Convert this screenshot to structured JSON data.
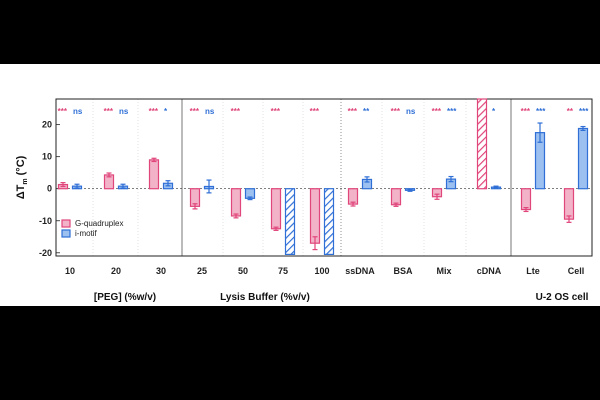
{
  "chart_data": {
    "type": "bar",
    "ylabel": "ΔT",
    "ylabel_sub": "m",
    "ylabel_unit": "(°C)",
    "ylim": [
      -21,
      28
    ],
    "yticks": [
      -20,
      -10,
      0,
      10,
      20
    ],
    "categories": [
      "10",
      "20",
      "30",
      "25",
      "50",
      "75",
      "100",
      "ssDNA",
      "BSA",
      "Mix",
      "cDNA",
      "Lte",
      "Cell"
    ],
    "groups": [
      {
        "label": "[PEG] (%w/v)",
        "start": 0,
        "end": 2
      },
      {
        "label": "Lysis Buffer (%v/v)",
        "start": 3,
        "end": 10
      },
      {
        "label": "U-2 OS cell",
        "start": 11,
        "end": 12
      }
    ],
    "series": [
      {
        "name": "G-quadruplex",
        "color": "#e0457b",
        "fill": "#f2b3c8",
        "values": [
          1.3,
          4.3,
          9.0,
          -5.5,
          -8.5,
          -12.5,
          -17.0,
          -4.8,
          -5.0,
          -2.5,
          28,
          -6.5,
          -9.5
        ],
        "errors": [
          0.6,
          0.6,
          0.5,
          0.8,
          0.6,
          0.5,
          2.0,
          0.6,
          0.5,
          0.8,
          0,
          0.6,
          1.0
        ],
        "hatched": [
          false,
          false,
          false,
          false,
          false,
          false,
          false,
          false,
          false,
          false,
          true,
          false,
          false
        ],
        "sig": [
          "***",
          "***",
          "***",
          "***",
          "***",
          "***",
          "***",
          "***",
          "***",
          "***",
          "",
          "***",
          "**"
        ]
      },
      {
        "name": "i-motif",
        "color": "#2f6fd6",
        "fill": "#9cc0f0",
        "values": [
          0.8,
          0.8,
          1.7,
          0.7,
          -3.0,
          -20.5,
          -20.5,
          2.9,
          -0.5,
          3.0,
          0.5,
          17.5,
          18.8
        ],
        "errors": [
          0.6,
          0.6,
          0.8,
          2.0,
          0.4,
          0,
          0,
          0.8,
          0.3,
          0.8,
          0.3,
          3.0,
          0.6
        ],
        "hatched": [
          false,
          false,
          false,
          false,
          false,
          true,
          true,
          false,
          false,
          false,
          false,
          false,
          false
        ],
        "sig": [
          "ns",
          "ns",
          "*",
          "ns",
          "",
          "",
          "",
          "**",
          "ns",
          "***",
          "*",
          "***",
          "***"
        ]
      }
    ],
    "legend_position": "bottom-left"
  }
}
